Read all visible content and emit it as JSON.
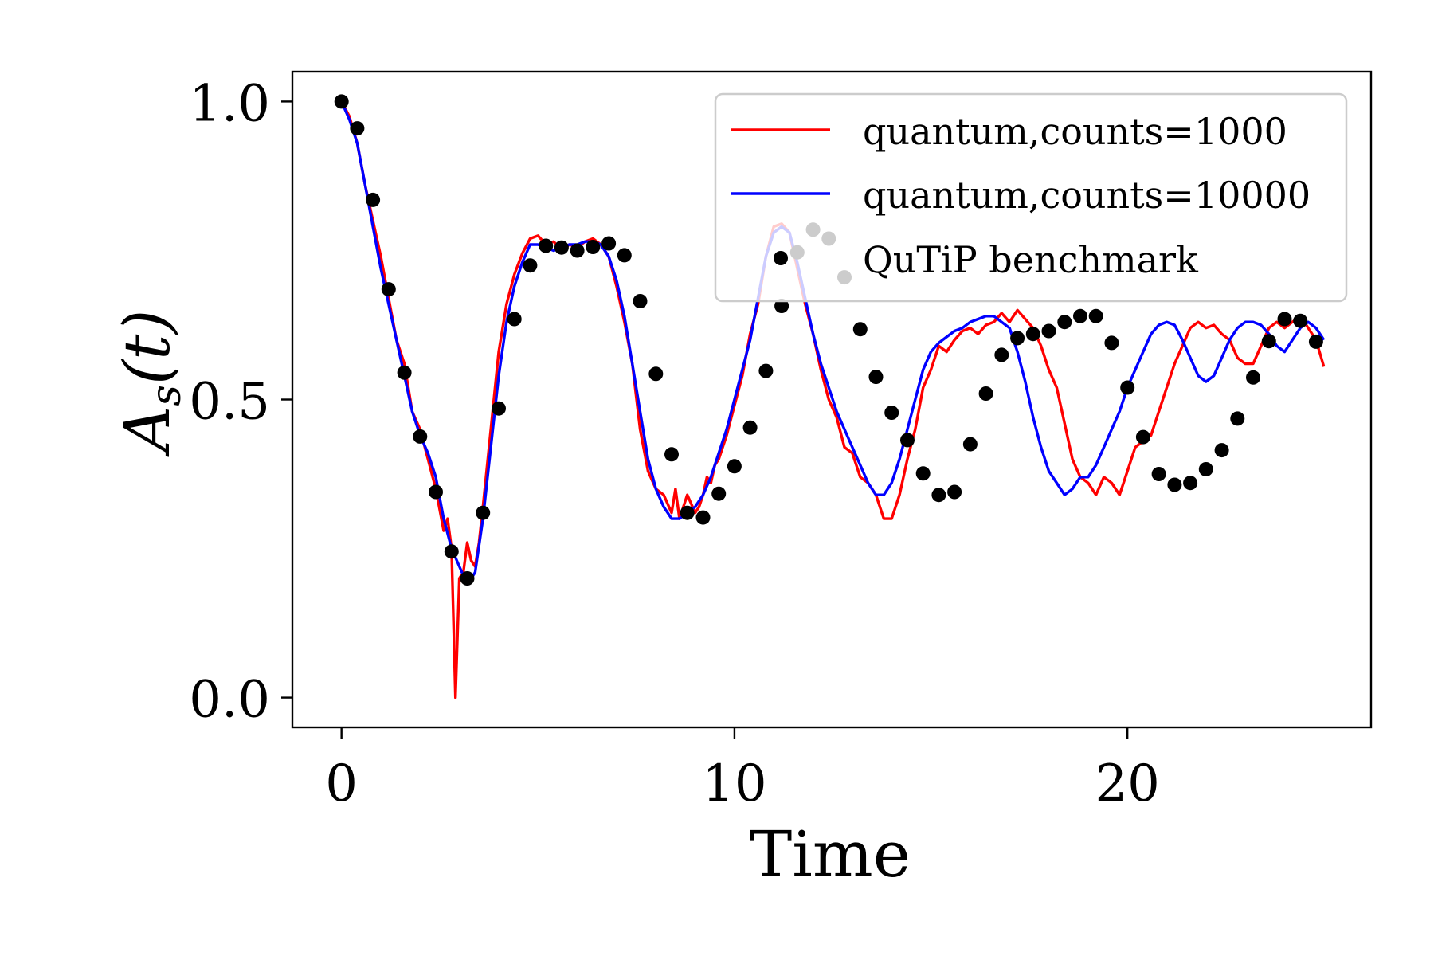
{
  "chart_data": {
    "type": "line",
    "title": "",
    "xlabel": "Time",
    "ylabel": "A_s(t)",
    "ylabel_main": "A",
    "ylabel_sub": "s",
    "ylabel_rest": "(t)",
    "xlim": [
      -1.25,
      26.2
    ],
    "ylim": [
      -0.05,
      1.05
    ],
    "xticks": [
      0,
      10,
      20
    ],
    "xtick_labels": [
      "0",
      "10",
      "20"
    ],
    "yticks": [
      0.0,
      0.5,
      1.0
    ],
    "ytick_labels": [
      "0.0",
      "0.5",
      "1.0"
    ],
    "grid": false,
    "legend_position": "top-right",
    "legend": [
      {
        "label": "quantum,counts=1000",
        "kind": "line",
        "color": "#ff0000"
      },
      {
        "label": "quantum,counts=10000",
        "kind": "line",
        "color": "#0000ff"
      },
      {
        "label": "QuTiP benchmark",
        "kind": "marker",
        "color": "#000000"
      }
    ],
    "series": [
      {
        "name": "quantum,counts=1000",
        "style": "line",
        "color": "#ff0000",
        "x": [
          0,
          0.2,
          0.4,
          0.6,
          0.8,
          1.0,
          1.2,
          1.4,
          1.6,
          1.8,
          2.0,
          2.2,
          2.4,
          2.6,
          2.7,
          2.8,
          2.9,
          3.0,
          3.1,
          3.2,
          3.3,
          3.4,
          3.5,
          3.6,
          3.8,
          4.0,
          4.2,
          4.4,
          4.6,
          4.8,
          5.0,
          5.2,
          5.4,
          5.6,
          5.8,
          6.0,
          6.2,
          6.4,
          6.6,
          6.8,
          7.0,
          7.2,
          7.4,
          7.6,
          7.8,
          8.0,
          8.2,
          8.4,
          8.5,
          8.6,
          8.8,
          9.0,
          9.1,
          9.2,
          9.3,
          9.4,
          9.5,
          9.6,
          9.8,
          10.0,
          10.2,
          10.4,
          10.6,
          10.8,
          11.0,
          11.2,
          11.4,
          11.6,
          11.8,
          12.0,
          12.2,
          12.4,
          12.6,
          12.8,
          13.0,
          13.2,
          13.4,
          13.6,
          13.8,
          14.0,
          14.2,
          14.4,
          14.6,
          14.8,
          15.0,
          15.2,
          15.4,
          15.6,
          15.8,
          16.0,
          16.2,
          16.4,
          16.6,
          16.8,
          17.0,
          17.2,
          17.4,
          17.6,
          17.8,
          18.0,
          18.2,
          18.4,
          18.6,
          18.8,
          19.0,
          19.2,
          19.4,
          19.6,
          19.8,
          20.0,
          20.2,
          20.4,
          20.6,
          20.8,
          21.0,
          21.2,
          21.4,
          21.6,
          21.8,
          22.0,
          22.2,
          22.4,
          22.6,
          22.8,
          23.0,
          23.2,
          23.4,
          23.6,
          23.8,
          24.0,
          24.2,
          24.4,
          24.6,
          24.8,
          25.0
        ],
        "y": [
          1.0,
          0.975,
          0.93,
          0.86,
          0.8,
          0.74,
          0.67,
          0.6,
          0.56,
          0.48,
          0.45,
          0.4,
          0.35,
          0.28,
          0.3,
          0.25,
          0.0,
          0.2,
          0.21,
          0.26,
          0.23,
          0.22,
          0.26,
          0.32,
          0.45,
          0.58,
          0.66,
          0.71,
          0.745,
          0.77,
          0.775,
          0.76,
          0.765,
          0.75,
          0.76,
          0.755,
          0.765,
          0.77,
          0.76,
          0.74,
          0.69,
          0.63,
          0.56,
          0.45,
          0.38,
          0.35,
          0.34,
          0.31,
          0.35,
          0.3,
          0.34,
          0.31,
          0.32,
          0.34,
          0.37,
          0.36,
          0.39,
          0.4,
          0.44,
          0.49,
          0.54,
          0.61,
          0.66,
          0.74,
          0.79,
          0.795,
          0.78,
          0.72,
          0.66,
          0.61,
          0.55,
          0.5,
          0.47,
          0.42,
          0.41,
          0.37,
          0.36,
          0.34,
          0.3,
          0.3,
          0.34,
          0.4,
          0.45,
          0.52,
          0.55,
          0.59,
          0.58,
          0.6,
          0.615,
          0.62,
          0.61,
          0.625,
          0.63,
          0.645,
          0.63,
          0.65,
          0.635,
          0.62,
          0.59,
          0.55,
          0.52,
          0.46,
          0.4,
          0.37,
          0.36,
          0.34,
          0.37,
          0.36,
          0.34,
          0.38,
          0.42,
          0.43,
          0.44,
          0.48,
          0.52,
          0.56,
          0.59,
          0.62,
          0.63,
          0.62,
          0.625,
          0.61,
          0.6,
          0.57,
          0.56,
          0.56,
          0.59,
          0.62,
          0.63,
          0.62,
          0.63,
          0.64,
          0.62,
          0.6,
          0.555
        ]
      },
      {
        "name": "quantum,counts=10000",
        "style": "line",
        "color": "#0000ff",
        "x": [
          0,
          0.2,
          0.4,
          0.6,
          0.8,
          1.0,
          1.2,
          1.4,
          1.6,
          1.8,
          2.0,
          2.2,
          2.4,
          2.6,
          2.8,
          3.0,
          3.2,
          3.4,
          3.6,
          3.8,
          4.0,
          4.2,
          4.4,
          4.6,
          4.8,
          5.0,
          5.2,
          5.4,
          5.6,
          5.8,
          6.0,
          6.2,
          6.4,
          6.6,
          6.8,
          7.0,
          7.2,
          7.4,
          7.6,
          7.8,
          8.0,
          8.2,
          8.4,
          8.6,
          8.8,
          9.0,
          9.2,
          9.4,
          9.6,
          9.8,
          10.0,
          10.2,
          10.4,
          10.6,
          10.8,
          11.0,
          11.2,
          11.4,
          11.6,
          11.8,
          12.0,
          12.2,
          12.4,
          12.6,
          12.8,
          13.0,
          13.2,
          13.4,
          13.6,
          13.8,
          14.0,
          14.2,
          14.4,
          14.6,
          14.8,
          15.0,
          15.2,
          15.4,
          15.6,
          15.8,
          16.0,
          16.2,
          16.4,
          16.6,
          16.8,
          17.0,
          17.2,
          17.4,
          17.6,
          17.8,
          18.0,
          18.2,
          18.4,
          18.6,
          18.8,
          19.0,
          19.2,
          19.4,
          19.6,
          19.8,
          20.0,
          20.2,
          20.4,
          20.6,
          20.8,
          21.0,
          21.2,
          21.4,
          21.6,
          21.8,
          22.0,
          22.2,
          22.4,
          22.6,
          22.8,
          23.0,
          23.2,
          23.4,
          23.6,
          23.8,
          24.0,
          24.2,
          24.4,
          24.6,
          24.8,
          25.0
        ],
        "y": [
          1.0,
          0.97,
          0.93,
          0.86,
          0.79,
          0.72,
          0.66,
          0.6,
          0.54,
          0.48,
          0.44,
          0.41,
          0.37,
          0.3,
          0.25,
          0.22,
          0.19,
          0.21,
          0.3,
          0.42,
          0.54,
          0.63,
          0.69,
          0.73,
          0.76,
          0.76,
          0.755,
          0.75,
          0.755,
          0.76,
          0.76,
          0.765,
          0.765,
          0.76,
          0.74,
          0.7,
          0.64,
          0.56,
          0.48,
          0.4,
          0.35,
          0.32,
          0.3,
          0.3,
          0.31,
          0.32,
          0.34,
          0.37,
          0.41,
          0.45,
          0.5,
          0.55,
          0.6,
          0.67,
          0.74,
          0.78,
          0.79,
          0.78,
          0.73,
          0.67,
          0.61,
          0.56,
          0.52,
          0.48,
          0.45,
          0.42,
          0.39,
          0.36,
          0.34,
          0.34,
          0.36,
          0.4,
          0.45,
          0.5,
          0.55,
          0.58,
          0.595,
          0.605,
          0.615,
          0.62,
          0.63,
          0.635,
          0.64,
          0.64,
          0.63,
          0.62,
          0.58,
          0.53,
          0.47,
          0.42,
          0.38,
          0.36,
          0.34,
          0.35,
          0.37,
          0.37,
          0.39,
          0.42,
          0.45,
          0.48,
          0.52,
          0.55,
          0.58,
          0.61,
          0.625,
          0.63,
          0.625,
          0.6,
          0.57,
          0.54,
          0.53,
          0.54,
          0.57,
          0.6,
          0.62,
          0.63,
          0.63,
          0.625,
          0.61,
          0.59,
          0.58,
          0.6,
          0.62,
          0.63,
          0.62,
          0.6
        ]
      },
      {
        "name": "QuTiP benchmark",
        "style": "markers",
        "color": "#000000",
        "x": [
          0.0,
          0.4,
          0.8,
          1.2,
          1.6,
          2.0,
          2.4,
          2.8,
          3.2,
          3.6,
          4.0,
          4.4,
          4.8,
          5.2,
          5.6,
          6.0,
          6.4,
          6.8,
          7.2,
          7.6,
          8.0,
          8.4,
          8.8,
          9.2,
          9.6,
          10.0,
          10.4,
          10.8,
          11.2,
          11.6,
          12.0,
          12.4,
          12.8,
          13.2,
          13.6,
          14.0,
          14.4,
          14.8,
          15.2,
          15.6,
          16.0,
          16.4,
          16.8,
          17.2,
          17.6,
          18.0,
          18.4,
          18.8,
          19.2,
          19.6,
          20.0,
          20.4,
          20.8,
          21.2,
          21.6,
          22.0,
          22.4,
          22.8,
          23.2,
          23.6,
          24.0,
          24.4,
          24.8
        ],
        "y": [
          1.0,
          0.955,
          0.835,
          0.685,
          0.545,
          0.438,
          0.345,
          0.245,
          0.2,
          0.31,
          0.485,
          0.635,
          0.725,
          0.758,
          0.755,
          0.75,
          0.756,
          0.762,
          0.742,
          0.665,
          0.543,
          0.408,
          0.31,
          0.302,
          0.342,
          0.388,
          0.453,
          0.548,
          0.657,
          0.747,
          0.785,
          0.77,
          0.705,
          0.618,
          0.538,
          0.478,
          0.432,
          0.376,
          0.34,
          0.345,
          0.425,
          0.51,
          0.575,
          0.603,
          0.61,
          0.615,
          0.63,
          0.64,
          0.64,
          0.595,
          0.52,
          0.437,
          0.375,
          0.357,
          0.36,
          0.383,
          0.415,
          0.468,
          0.537,
          0.598,
          0.635,
          0.632,
          0.597
        ]
      }
    ]
  }
}
